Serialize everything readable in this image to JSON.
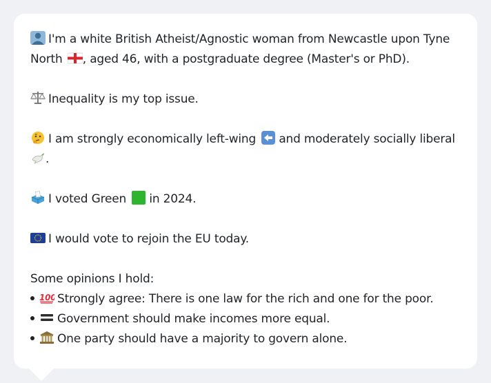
{
  "profile": {
    "identity_line1": "I'm a white British Atheist/Agnostic woman from Newcastle upon Tyne",
    "identity_line2a": "North",
    "identity_line2b": ", aged 46, with a postgraduate degree (Master's or PhD).",
    "top_issue": "Inequality is my top issue.",
    "political_line1a": "I am strongly economically left-wing",
    "political_line1b": "and moderately socially liberal",
    "political_line2": ".",
    "vote_a": "I voted Green",
    "vote_b": "in 2024.",
    "eu": "I would vote to rejoin the EU today.",
    "opinions_heading": "Some opinions I hold:",
    "opinions": [
      {
        "icon": "hundred-points-icon",
        "text": "Strongly agree: There is one law for the rich and one for the poor."
      },
      {
        "icon": "equals-sign-icon",
        "text": "Government should make incomes more equal."
      },
      {
        "icon": "classical-building-icon",
        "text": "One party should have a majority to govern alone."
      }
    ]
  },
  "colors": {
    "page_background": "#eff1f4",
    "bubble_background": "#ffffff",
    "text": "#1f2328",
    "green_square": "#2db52d",
    "eu_blue": "#1d3f95"
  }
}
